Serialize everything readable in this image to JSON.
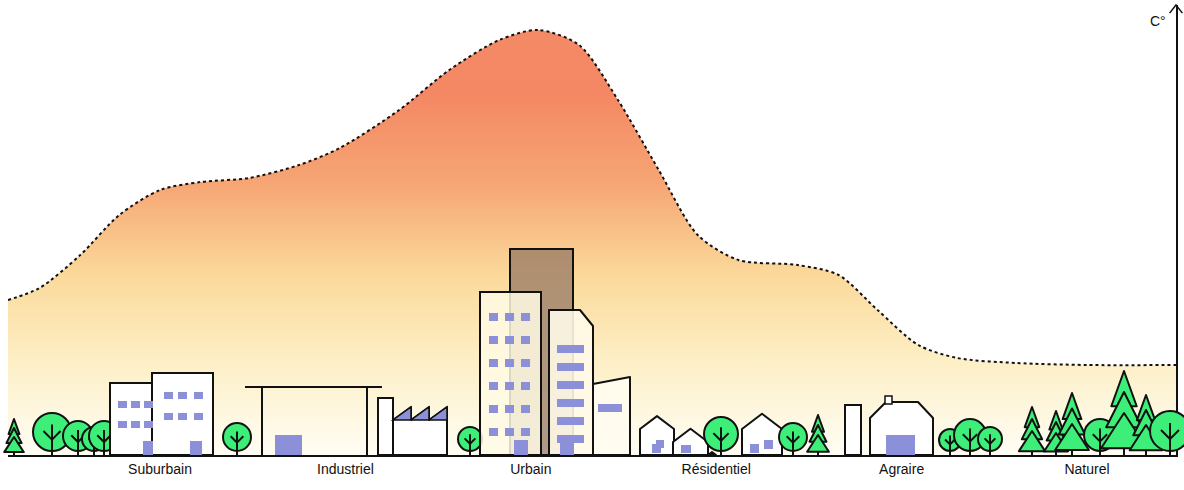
{
  "chart_data": {
    "type": "area",
    "x": [
      -0.82,
      -0.65,
      -0.43,
      -0.22,
      0,
      0.22,
      0.48,
      0.75,
      0.97,
      1.29,
      1.56,
      1.83,
      2.04,
      2.26,
      2.47,
      2.69,
      2.9,
      3.12,
      3.44,
      3.66,
      3.87,
      4.09,
      4.3,
      4.62,
      5,
      5.48
    ],
    "values": [
      155,
      167,
      200,
      240,
      265,
      273,
      277,
      290,
      307,
      345,
      385,
      415,
      425,
      410,
      355,
      285,
      220,
      195,
      190,
      180,
      145,
      110,
      97,
      92,
      90,
      90
    ],
    "xlim": [
      -0.82,
      5.48
    ],
    "xticks": [
      {
        "value": 0,
        "label": "Suburbain"
      },
      {
        "value": 1,
        "label": "Industriel"
      },
      {
        "value": 2,
        "label": "Urbain"
      },
      {
        "value": 3,
        "label": "Résidentiel"
      },
      {
        "value": 4,
        "label": "Agraire"
      },
      {
        "value": 5,
        "label": "Naturel"
      }
    ],
    "ylim": [
      0,
      450
    ],
    "y_label": "C°",
    "tick_labels": "x",
    "grid": false,
    "line_style": "dotted"
  }
}
